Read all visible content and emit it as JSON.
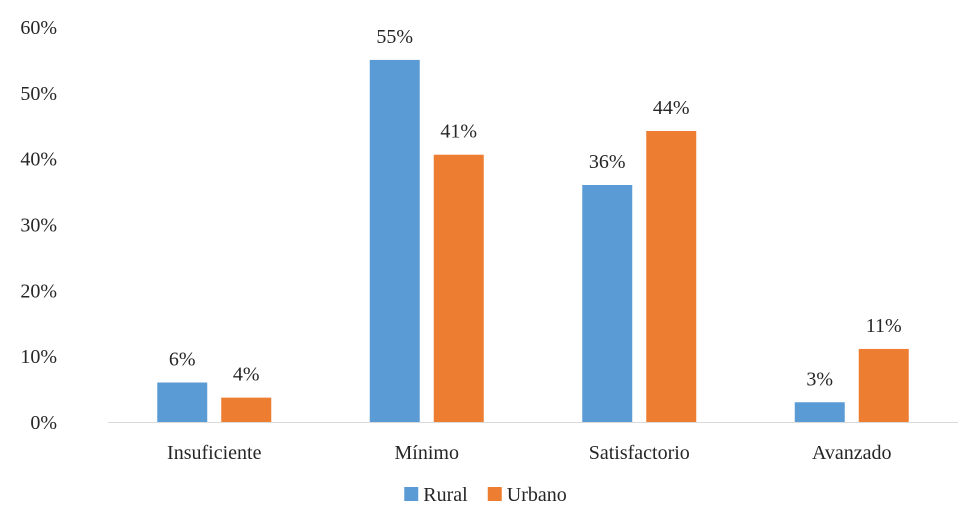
{
  "chart_data": {
    "type": "bar",
    "categories": [
      "Insuficiente",
      "Mínimo",
      "Satisfactorio",
      "Avanzado"
    ],
    "series": [
      {
        "name": "Rural",
        "values": [
          6,
          55,
          36,
          3
        ],
        "labels": [
          "6%",
          "55%",
          "36%",
          "3%"
        ],
        "color": "#5b9bd5"
      },
      {
        "name": "Urbano",
        "values": [
          3.7,
          40.6,
          44.2,
          11.1
        ],
        "labels": [
          "4%",
          "41%",
          "44%",
          "11%"
        ],
        "color": "#ed7d31"
      }
    ],
    "y_ticks": [
      "0%",
      "10%",
      "20%",
      "30%",
      "40%",
      "50%",
      "60%"
    ],
    "ylim": [
      0,
      60
    ],
    "grid": false,
    "legend_position": "bottom",
    "axis_color": "#d9d9d9"
  }
}
